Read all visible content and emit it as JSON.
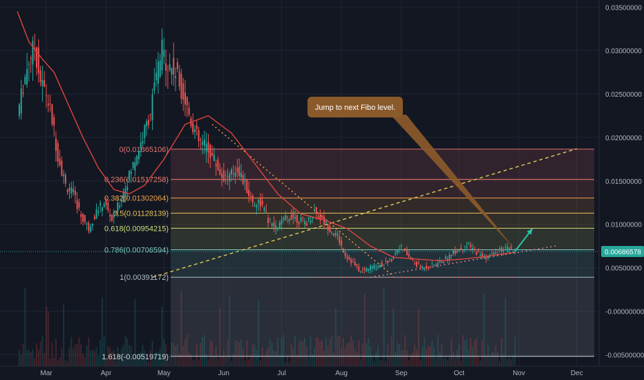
{
  "colors": {
    "background": "#131722",
    "grid": "#1f2433",
    "axis_text": "#b2b5be",
    "up_candle": "#26a69a",
    "down_candle": "#ef5350",
    "moving_average": "#e0443f",
    "fib_fill": "#3b4a66",
    "callout_bg": "#8b5a2b",
    "projection_arrow": "#26c6a6",
    "price_tag": "#26a69a"
  },
  "callout": {
    "text": "Jump to next Fibo level."
  },
  "current_price": {
    "label": "0.00686578",
    "value": 0.00686578
  },
  "chart_data": {
    "type": "candlestick",
    "x_axis": {
      "ticks": [
        "Mar",
        "Apr",
        "May",
        "Jun",
        "Jul",
        "Aug",
        "Sep",
        "Oct",
        "Nov",
        "Dec"
      ]
    },
    "y_axis": {
      "scale": "linear",
      "range": [
        -0.0056,
        0.0363
      ],
      "ticks": [
        {
          "value": 0.035,
          "label": "0.03500000"
        },
        {
          "value": 0.03,
          "label": "0.03000000"
        },
        {
          "value": 0.025,
          "label": "0.02500000"
        },
        {
          "value": 0.02,
          "label": "0.02000000"
        },
        {
          "value": 0.015,
          "label": "0.01500000"
        },
        {
          "value": 0.01,
          "label": "0.01000000"
        },
        {
          "value": 0.005,
          "label": "0.00500000"
        },
        {
          "value": 0.0,
          "label": "-0.00000000"
        },
        {
          "value": -0.005,
          "label": "-0.00500000"
        }
      ]
    },
    "fibonacci_levels": [
      {
        "label": "0(0.01865106)",
        "value": 0.01865106,
        "color": "#e57373"
      },
      {
        "label": "0.236(0.01517258)",
        "value": 0.01517258,
        "color": "#ef7b6b"
      },
      {
        "label": "0.382(0.01302064)",
        "value": 0.01302064,
        "color": "#f0a04b"
      },
      {
        "label": "0.5(0.01128139)",
        "value": 0.01128139,
        "color": "#e8c15a"
      },
      {
        "label": "0.618(0.00954215)",
        "value": 0.00954215,
        "color": "#cfe07a"
      },
      {
        "label": "0.786(0.00706594)",
        "value": 0.00706594,
        "color": "#80cbc4"
      },
      {
        "label": "1(0.00391172)",
        "value": 0.00391172,
        "color": "#b0bec5"
      },
      {
        "label": "1.618(-0.00519719)",
        "value": -0.00519719,
        "color": "#cfd8dc"
      }
    ],
    "price_series": [
      {
        "date": "Feb 15",
        "value": 0.0225
      },
      {
        "date": "Feb 18",
        "value": 0.026
      },
      {
        "date": "Feb 21",
        "value": 0.029
      },
      {
        "date": "Feb 24",
        "value": 0.0305
      },
      {
        "date": "Feb 27",
        "value": 0.0265
      },
      {
        "date": "Mar 2",
        "value": 0.025
      },
      {
        "date": "Mar 5",
        "value": 0.022
      },
      {
        "date": "Mar 8",
        "value": 0.018
      },
      {
        "date": "Mar 12",
        "value": 0.0145
      },
      {
        "date": "Mar 16",
        "value": 0.0135
      },
      {
        "date": "Mar 20",
        "value": 0.011
      },
      {
        "date": "Mar 24",
        "value": 0.0095
      },
      {
        "date": "Mar 28",
        "value": 0.0115
      },
      {
        "date": "Apr 1",
        "value": 0.0125
      },
      {
        "date": "Apr 5",
        "value": 0.0105
      },
      {
        "date": "Apr 9",
        "value": 0.0125
      },
      {
        "date": "Apr 13",
        "value": 0.015
      },
      {
        "date": "Apr 17",
        "value": 0.0175
      },
      {
        "date": "Apr 21",
        "value": 0.02
      },
      {
        "date": "Apr 25",
        "value": 0.023
      },
      {
        "date": "Apr 28",
        "value": 0.027
      },
      {
        "date": "May 1",
        "value": 0.03
      },
      {
        "date": "May 4",
        "value": 0.0285
      },
      {
        "date": "May 8",
        "value": 0.0275
      },
      {
        "date": "May 12",
        "value": 0.025
      },
      {
        "date": "May 16",
        "value": 0.022
      },
      {
        "date": "May 20",
        "value": 0.0195
      },
      {
        "date": "May 24",
        "value": 0.019
      },
      {
        "date": "May 28",
        "value": 0.0175
      },
      {
        "date": "Jun 1",
        "value": 0.0155
      },
      {
        "date": "Jun 5",
        "value": 0.0155
      },
      {
        "date": "Jun 9",
        "value": 0.0165
      },
      {
        "date": "Jun 13",
        "value": 0.0145
      },
      {
        "date": "Jun 17",
        "value": 0.0125
      },
      {
        "date": "Jun 21",
        "value": 0.0125
      },
      {
        "date": "Jun 25",
        "value": 0.0105
      },
      {
        "date": "Jun 29",
        "value": 0.0095
      },
      {
        "date": "Jul 3",
        "value": 0.0105
      },
      {
        "date": "Jul 7",
        "value": 0.011
      },
      {
        "date": "Jul 11",
        "value": 0.0105
      },
      {
        "date": "Jul 15",
        "value": 0.0102
      },
      {
        "date": "Jul 19",
        "value": 0.0115
      },
      {
        "date": "Jul 23",
        "value": 0.0105
      },
      {
        "date": "Jul 27",
        "value": 0.0095
      },
      {
        "date": "Jul 31",
        "value": 0.0085
      },
      {
        "date": "Aug 4",
        "value": 0.0065
      },
      {
        "date": "Aug 8",
        "value": 0.0055
      },
      {
        "date": "Aug 12",
        "value": 0.0045
      },
      {
        "date": "Aug 16",
        "value": 0.005
      },
      {
        "date": "Aug 20",
        "value": 0.0052
      },
      {
        "date": "Aug 24",
        "value": 0.0055
      },
      {
        "date": "Aug 28",
        "value": 0.006
      },
      {
        "date": "Sep 1",
        "value": 0.0075
      },
      {
        "date": "Sep 5",
        "value": 0.0065
      },
      {
        "date": "Sep 9",
        "value": 0.0055
      },
      {
        "date": "Sep 13",
        "value": 0.005
      },
      {
        "date": "Sep 17",
        "value": 0.0052
      },
      {
        "date": "Sep 21",
        "value": 0.0055
      },
      {
        "date": "Sep 25",
        "value": 0.006
      },
      {
        "date": "Sep 29",
        "value": 0.0068
      },
      {
        "date": "Oct 3",
        "value": 0.0072
      },
      {
        "date": "Oct 7",
        "value": 0.0075
      },
      {
        "date": "Oct 11",
        "value": 0.0068
      },
      {
        "date": "Oct 15",
        "value": 0.0062
      },
      {
        "date": "Oct 19",
        "value": 0.0065
      },
      {
        "date": "Oct 23",
        "value": 0.007
      },
      {
        "date": "Oct 27",
        "value": 0.0072
      },
      {
        "date": "Oct 30",
        "value": 0.0069
      }
    ],
    "moving_average": [
      {
        "date": "Feb 14",
        "value": 0.0345
      },
      {
        "date": "Feb 20",
        "value": 0.031
      },
      {
        "date": "Feb 27",
        "value": 0.029
      },
      {
        "date": "Mar 5",
        "value": 0.0275
      },
      {
        "date": "Mar 12",
        "value": 0.024
      },
      {
        "date": "Mar 20",
        "value": 0.02
      },
      {
        "date": "Mar 28",
        "value": 0.0165
      },
      {
        "date": "Apr 5",
        "value": 0.014
      },
      {
        "date": "Apr 13",
        "value": 0.0135
      },
      {
        "date": "Apr 21",
        "value": 0.0145
      },
      {
        "date": "May 1",
        "value": 0.0175
      },
      {
        "date": "May 12",
        "value": 0.0215
      },
      {
        "date": "May 24",
        "value": 0.0225
      },
      {
        "date": "Jun 5",
        "value": 0.0205
      },
      {
        "date": "Jun 17",
        "value": 0.017
      },
      {
        "date": "Jun 29",
        "value": 0.0135
      },
      {
        "date": "Jul 11",
        "value": 0.0112
      },
      {
        "date": "Jul 23",
        "value": 0.0105
      },
      {
        "date": "Aug 4",
        "value": 0.0095
      },
      {
        "date": "Aug 16",
        "value": 0.0075
      },
      {
        "date": "Aug 28",
        "value": 0.0062
      },
      {
        "date": "Sep 9",
        "value": 0.006
      },
      {
        "date": "Sep 21",
        "value": 0.0058
      },
      {
        "date": "Oct 3",
        "value": 0.006
      },
      {
        "date": "Oct 15",
        "value": 0.0063
      },
      {
        "date": "Oct 30",
        "value": 0.0068
      }
    ],
    "trendlines": [
      {
        "style": "dotted-falling",
        "from": {
          "date": "May 26",
          "value": 0.0215
        },
        "to": {
          "date": "Aug 28",
          "value": 0.004
        }
      },
      {
        "style": "dotted-support",
        "from": {
          "date": "Jul 17",
          "value": 0.0039
        },
        "to": {
          "date": "Oct 30",
          "value": 0.0039
        }
      },
      {
        "style": "dotted-rising",
        "from": {
          "date": "Aug 16",
          "value": 0.0039
        },
        "to": {
          "date": "Nov 20",
          "value": 0.0075
        }
      },
      {
        "style": "dashed-rising",
        "from": {
          "date": "Apr 25",
          "value": 0.0039
        },
        "to": {
          "date": "Dec 1",
          "value": 0.0187
        }
      }
    ],
    "projection": {
      "from": {
        "date": "Oct 30",
        "value": 0.0069
      },
      "to": {
        "date": "Nov 8",
        "value": 0.0095
      }
    },
    "callout_target": {
      "date": "Oct 30",
      "value": 0.0071
    }
  }
}
